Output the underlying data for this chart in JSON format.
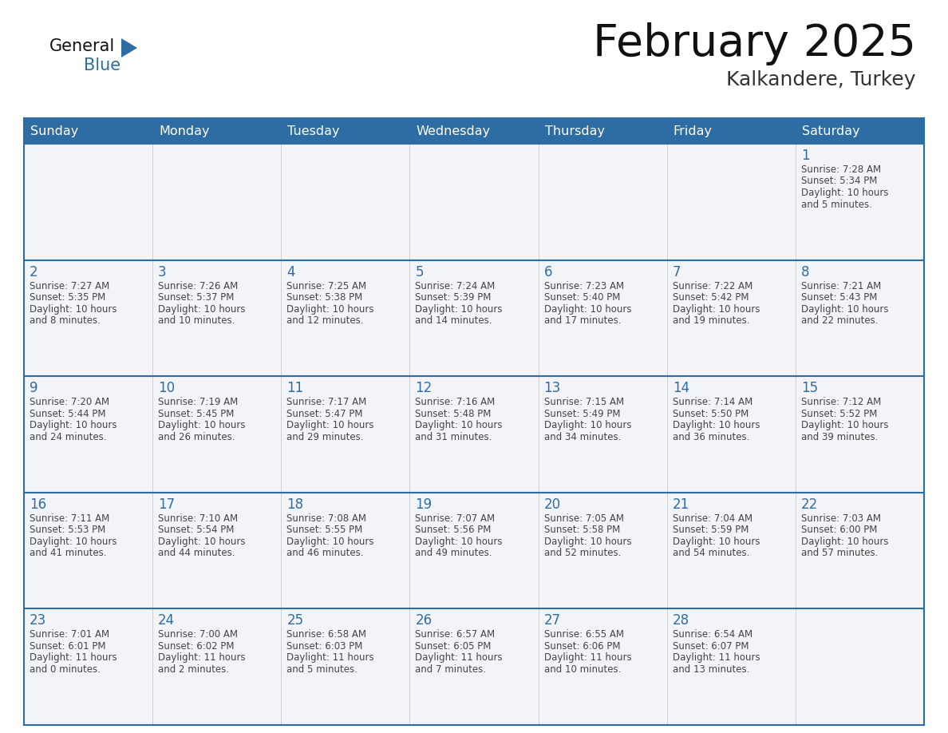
{
  "title": "February 2025",
  "subtitle": "Kalkandere, Turkey",
  "header_bg": "#2e6da4",
  "header_text_color": "#ffffff",
  "border_color": "#2e6da4",
  "day_number_color": "#2e6da4",
  "info_text_color": "#444444",
  "cell_bg": "#f5f5f5",
  "days_of_week": [
    "Sunday",
    "Monday",
    "Tuesday",
    "Wednesday",
    "Thursday",
    "Friday",
    "Saturday"
  ],
  "weeks": [
    [
      {
        "day": "",
        "info": ""
      },
      {
        "day": "",
        "info": ""
      },
      {
        "day": "",
        "info": ""
      },
      {
        "day": "",
        "info": ""
      },
      {
        "day": "",
        "info": ""
      },
      {
        "day": "",
        "info": ""
      },
      {
        "day": "1",
        "info": "Sunrise: 7:28 AM\nSunset: 5:34 PM\nDaylight: 10 hours\nand 5 minutes."
      }
    ],
    [
      {
        "day": "2",
        "info": "Sunrise: 7:27 AM\nSunset: 5:35 PM\nDaylight: 10 hours\nand 8 minutes."
      },
      {
        "day": "3",
        "info": "Sunrise: 7:26 AM\nSunset: 5:37 PM\nDaylight: 10 hours\nand 10 minutes."
      },
      {
        "day": "4",
        "info": "Sunrise: 7:25 AM\nSunset: 5:38 PM\nDaylight: 10 hours\nand 12 minutes."
      },
      {
        "day": "5",
        "info": "Sunrise: 7:24 AM\nSunset: 5:39 PM\nDaylight: 10 hours\nand 14 minutes."
      },
      {
        "day": "6",
        "info": "Sunrise: 7:23 AM\nSunset: 5:40 PM\nDaylight: 10 hours\nand 17 minutes."
      },
      {
        "day": "7",
        "info": "Sunrise: 7:22 AM\nSunset: 5:42 PM\nDaylight: 10 hours\nand 19 minutes."
      },
      {
        "day": "8",
        "info": "Sunrise: 7:21 AM\nSunset: 5:43 PM\nDaylight: 10 hours\nand 22 minutes."
      }
    ],
    [
      {
        "day": "9",
        "info": "Sunrise: 7:20 AM\nSunset: 5:44 PM\nDaylight: 10 hours\nand 24 minutes."
      },
      {
        "day": "10",
        "info": "Sunrise: 7:19 AM\nSunset: 5:45 PM\nDaylight: 10 hours\nand 26 minutes."
      },
      {
        "day": "11",
        "info": "Sunrise: 7:17 AM\nSunset: 5:47 PM\nDaylight: 10 hours\nand 29 minutes."
      },
      {
        "day": "12",
        "info": "Sunrise: 7:16 AM\nSunset: 5:48 PM\nDaylight: 10 hours\nand 31 minutes."
      },
      {
        "day": "13",
        "info": "Sunrise: 7:15 AM\nSunset: 5:49 PM\nDaylight: 10 hours\nand 34 minutes."
      },
      {
        "day": "14",
        "info": "Sunrise: 7:14 AM\nSunset: 5:50 PM\nDaylight: 10 hours\nand 36 minutes."
      },
      {
        "day": "15",
        "info": "Sunrise: 7:12 AM\nSunset: 5:52 PM\nDaylight: 10 hours\nand 39 minutes."
      }
    ],
    [
      {
        "day": "16",
        "info": "Sunrise: 7:11 AM\nSunset: 5:53 PM\nDaylight: 10 hours\nand 41 minutes."
      },
      {
        "day": "17",
        "info": "Sunrise: 7:10 AM\nSunset: 5:54 PM\nDaylight: 10 hours\nand 44 minutes."
      },
      {
        "day": "18",
        "info": "Sunrise: 7:08 AM\nSunset: 5:55 PM\nDaylight: 10 hours\nand 46 minutes."
      },
      {
        "day": "19",
        "info": "Sunrise: 7:07 AM\nSunset: 5:56 PM\nDaylight: 10 hours\nand 49 minutes."
      },
      {
        "day": "20",
        "info": "Sunrise: 7:05 AM\nSunset: 5:58 PM\nDaylight: 10 hours\nand 52 minutes."
      },
      {
        "day": "21",
        "info": "Sunrise: 7:04 AM\nSunset: 5:59 PM\nDaylight: 10 hours\nand 54 minutes."
      },
      {
        "day": "22",
        "info": "Sunrise: 7:03 AM\nSunset: 6:00 PM\nDaylight: 10 hours\nand 57 minutes."
      }
    ],
    [
      {
        "day": "23",
        "info": "Sunrise: 7:01 AM\nSunset: 6:01 PM\nDaylight: 11 hours\nand 0 minutes."
      },
      {
        "day": "24",
        "info": "Sunrise: 7:00 AM\nSunset: 6:02 PM\nDaylight: 11 hours\nand 2 minutes."
      },
      {
        "day": "25",
        "info": "Sunrise: 6:58 AM\nSunset: 6:03 PM\nDaylight: 11 hours\nand 5 minutes."
      },
      {
        "day": "26",
        "info": "Sunrise: 6:57 AM\nSunset: 6:05 PM\nDaylight: 11 hours\nand 7 minutes."
      },
      {
        "day": "27",
        "info": "Sunrise: 6:55 AM\nSunset: 6:06 PM\nDaylight: 11 hours\nand 10 minutes."
      },
      {
        "day": "28",
        "info": "Sunrise: 6:54 AM\nSunset: 6:07 PM\nDaylight: 11 hours\nand 13 minutes."
      },
      {
        "day": "",
        "info": ""
      }
    ]
  ]
}
